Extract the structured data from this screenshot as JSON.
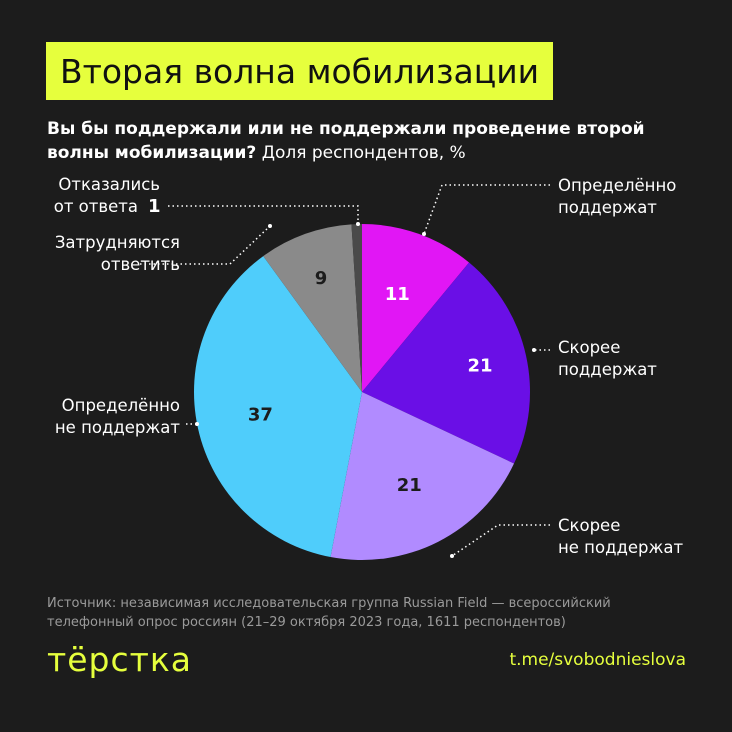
{
  "header": {
    "title": "Вторая волна мобилизации",
    "question": "Вы бы поддержали или не поддержали проведение второй волны мобилизации?",
    "unit_note": "Доля респондентов, %"
  },
  "chart_data": {
    "type": "pie",
    "title": "Вторая волна мобилизации",
    "subtitle": "Вы бы поддержали или не поддержали проведение второй волны мобилизации? Доля респондентов, %",
    "unit": "%",
    "start": "12 o'clock",
    "direction": "clockwise",
    "slices": [
      {
        "label_lines": [
          "Определённо",
          "поддержат"
        ],
        "value": 11,
        "color": "#e116f5",
        "value_text_color": "#ffffff"
      },
      {
        "label_lines": [
          "Скорее",
          "поддержат"
        ],
        "value": 21,
        "color": "#6a0fe6",
        "value_text_color": "#ffffff"
      },
      {
        "label_lines": [
          "Скорее",
          "не поддержат"
        ],
        "value": 21,
        "color": "#b18bff",
        "value_text_color": "#1c1c1c"
      },
      {
        "label_lines": [
          "Определённо",
          "не поддержат"
        ],
        "value": 37,
        "color": "#4fcdfb",
        "value_text_color": "#1c1c1c"
      },
      {
        "label_lines": [
          "Затрудняются",
          "ответить"
        ],
        "value": 9,
        "color": "#8a8a8a",
        "value_text_color": "#1c1c1c"
      },
      {
        "label_lines": [
          "Отказались",
          "от ответа"
        ],
        "value": 1,
        "color": "#4a4a4a",
        "value_text_color": "#ffffff"
      }
    ]
  },
  "footer": {
    "source": "Источник: независимая исследовательская группа Russian Field — всероссийский телефонный опрос россиян (21–29 октября 2023 года, 1611 респондентов)",
    "logo": "тёрстка",
    "link": "t.me/svobodnieslova"
  }
}
